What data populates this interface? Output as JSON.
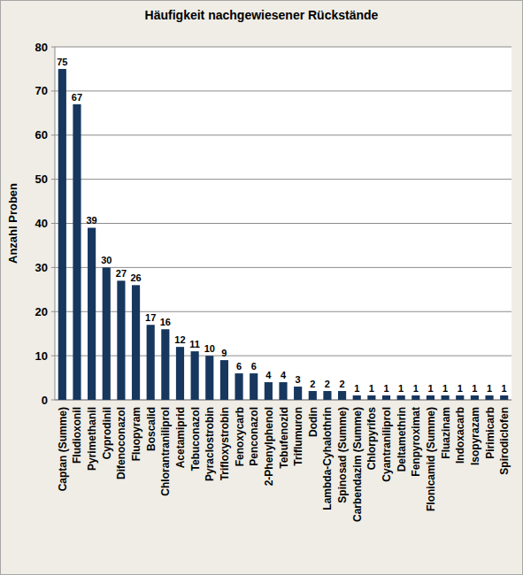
{
  "chart_data": {
    "type": "bar",
    "title": "Häufigkeit nachgewiesener Rückstände",
    "y_label": "Anzahl Proben",
    "categories": [
      "Captan (Summe)",
      "Fludioxonil",
      "Pyrimethanil",
      "Cyprodinil",
      "Difenoconazol",
      "Fluopyram",
      "Boscalid",
      "Chlorantraniliprol",
      "Acetamiprid",
      "Tebuconazol",
      "Pyraclostrobin",
      "Trifloxystrobin",
      "Fenoxycarb",
      "Penconazol",
      "2-Phenylphenol",
      "Tebufenozid",
      "Triflumuron",
      "Dodin",
      "Lambda-Cyhalothrin",
      "Spinosad (Summe)",
      "Carbendazim (Summe)",
      "Chlorpyrifos",
      "Cyantraniliprol",
      "Deltamethrin",
      "Fenpyroximat",
      "Flonicamid (Summe)",
      "Fluazinam",
      "Indoxacarb",
      "Isopyrazam",
      "Pirimicarb",
      "Spirodiclofen"
    ],
    "values": [
      75,
      67,
      39,
      30,
      27,
      26,
      17,
      16,
      12,
      11,
      10,
      9,
      6,
      6,
      4,
      4,
      3,
      2,
      2,
      2,
      1,
      1,
      1,
      1,
      1,
      1,
      1,
      1,
      1,
      1,
      1
    ],
    "color": "#17375e",
    "ylim": [
      0,
      80
    ],
    "yticks": [
      0,
      10,
      20,
      30,
      40,
      50,
      60,
      70,
      80
    ],
    "grid": true,
    "data_labels": true
  }
}
